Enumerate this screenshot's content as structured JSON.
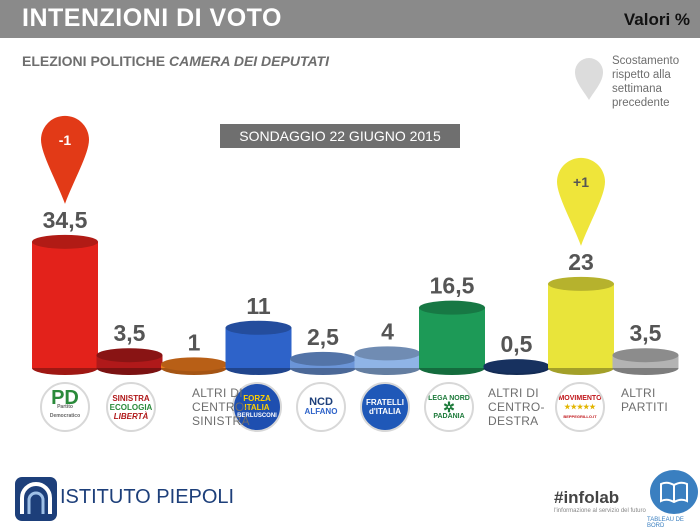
{
  "header": {
    "title": "INTENZIONI DI VOTO",
    "unit": "Valori %"
  },
  "subtitle": {
    "main": "ELEZIONI POLITICHE",
    "italic": "CAMERA DEI DEPUTATI"
  },
  "legend": {
    "text": "Scostamento rispetto alla settimana precedente"
  },
  "survey_date": "SONDAGGIO 22 GIUGNO 2015",
  "chart_data": {
    "type": "bar",
    "title": "INTENZIONI DI VOTO",
    "ylabel": "Valori %",
    "ylim": [
      0,
      35
    ],
    "categories": [
      "PD",
      "SEL",
      "ALTRI DI CENTRO-SINISTRA",
      "FORZA ITALIA",
      "NCD",
      "FRATELLI D'ITALIA",
      "LEGA NORD",
      "ALTRI DI CENTRO-DESTRA",
      "MOVIMENTO 5 STELLE",
      "ALTRI PARTITI"
    ],
    "values": [
      34.5,
      3.5,
      1,
      11,
      2.5,
      4,
      16.5,
      0.5,
      23,
      3.5
    ],
    "labels": [
      "34,5",
      "3,5",
      "1",
      "11",
      "2,5",
      "4",
      "16,5",
      "0,5",
      "23",
      "3,5"
    ],
    "colors": [
      "#e3221b",
      "#b0191a",
      "#ec7a1c",
      "#2e63c9",
      "#6b95d8",
      "#8fb4e6",
      "#1d9a57",
      "#1d3f7a",
      "#e9e43a",
      "#b3b3b3"
    ],
    "changes": [
      {
        "index": 0,
        "label": "-1",
        "color": "#e23a17"
      },
      {
        "index": 8,
        "label": "+1",
        "color": "#efe53a"
      }
    ]
  },
  "logos": {
    "pd": {
      "line1": "PD",
      "sub": "Partito Democratico"
    },
    "sel": {
      "line1": "SINISTRA",
      "line2": "ECOLOGIA",
      "line3": "LIBERTÀ"
    },
    "fi": {
      "line1": "FORZA",
      "line2": "ITALIA",
      "line3": "BERLUSCONI"
    },
    "ncd": {
      "line1": "NCD",
      "line2": "ALFANO"
    },
    "fdi": {
      "line1": "FRATELLI",
      "line2": "d'ITALIA"
    },
    "lega": {
      "line1": "LEGA NORD",
      "line2": "PADANIA"
    },
    "m5s": {
      "line1": "MOVIMENTO",
      "line2": "★★★★★",
      "line3": "BEPPEGRILLO.IT"
    }
  },
  "altri": {
    "cs": [
      "ALTRI DI",
      "CENTRO-",
      "SINISTRA"
    ],
    "cd": [
      "ALTRI DI",
      "CENTRO-",
      "DESTRA"
    ],
    "partiti": [
      "ALTRI",
      "PARTITI"
    ]
  },
  "footer": {
    "brand": "ISTITUTO PIEPOLI",
    "infolab": "#infolab",
    "infolab_sub": "l'informazione al servizio del futuro",
    "tdb": "TABLEAU DE BORD"
  }
}
